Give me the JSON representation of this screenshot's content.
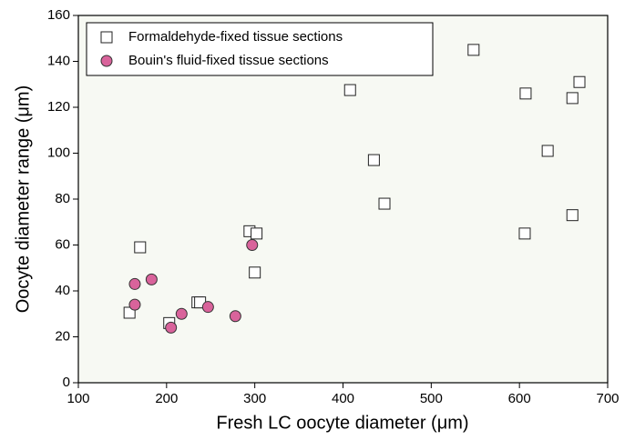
{
  "chart_data": {
    "type": "scatter",
    "xlabel": "Fresh LC oocyte diameter (μm)",
    "ylabel": "Oocyte diameter range (μm)",
    "xlim": [
      100,
      700
    ],
    "ylim": [
      0,
      160
    ],
    "xticks": [
      100,
      200,
      300,
      400,
      500,
      600,
      700
    ],
    "yticks": [
      0,
      20,
      40,
      60,
      80,
      100,
      120,
      140,
      160
    ],
    "legend": "upper left",
    "series": [
      {
        "name": "Formaldehyde-fixed tissue sections",
        "color": "#ffffff",
        "marker": "square",
        "x": [
          158,
          170,
          203,
          235,
          238,
          294,
          302,
          300,
          408,
          435,
          447,
          548,
          607,
          606,
          632,
          660,
          668,
          660
        ],
        "values": [
          30.5,
          59,
          26,
          35,
          35,
          66,
          65,
          48,
          127.5,
          97,
          78,
          145,
          126,
          65,
          101,
          124,
          131,
          73
        ]
      },
      {
        "name": "Bouin's fluid-fixed tissue sections",
        "color": "#d9639b",
        "marker": "circle",
        "x": [
          164,
          164,
          183,
          205,
          217,
          247,
          278,
          297
        ],
        "values": [
          43,
          34,
          45,
          24,
          30,
          33,
          29,
          60
        ]
      }
    ]
  }
}
